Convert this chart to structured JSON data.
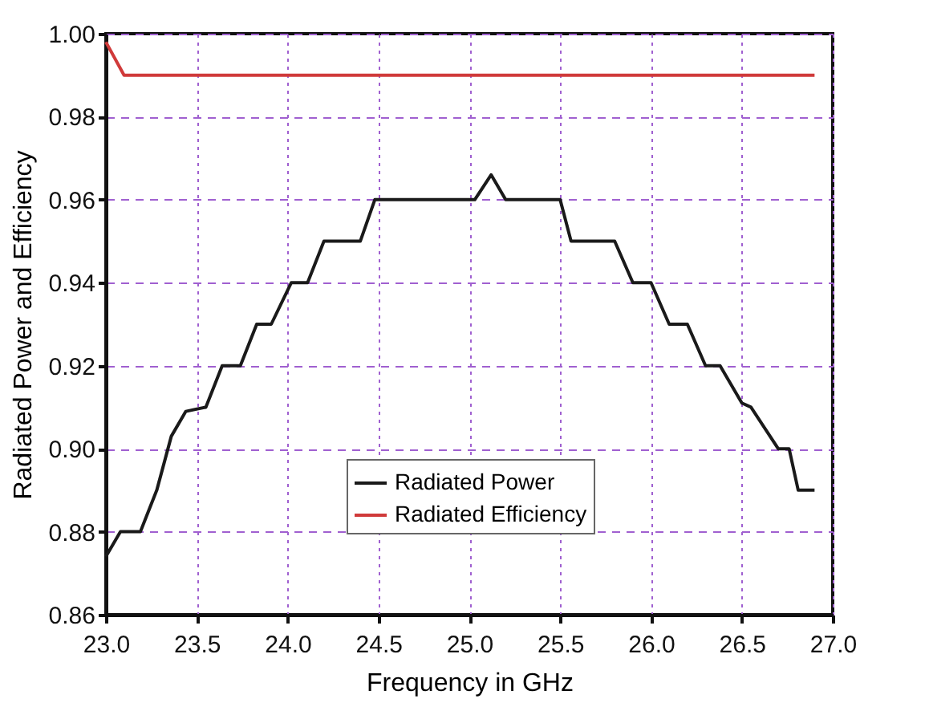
{
  "chart_data": {
    "type": "line",
    "xlabel": "Frequency in GHz",
    "ylabel": "Radiated Power and Efficiency",
    "xlim": [
      23.0,
      27.0
    ],
    "xticks": [
      {
        "value": 23.0,
        "label": "23.0"
      },
      {
        "value": 23.5,
        "label": "23.5"
      },
      {
        "value": 24.0,
        "label": "24.0"
      },
      {
        "value": 24.5,
        "label": "24.5"
      },
      {
        "value": 25.0,
        "label": "25.0"
      },
      {
        "value": 25.5,
        "label": "25.5"
      },
      {
        "value": 26.0,
        "label": "26.0"
      },
      {
        "value": 26.5,
        "label": "26.5"
      },
      {
        "value": 27.0,
        "label": "27.0"
      }
    ],
    "ylim": [
      0.86,
      1.0
    ],
    "yticks": [
      {
        "value": 0.86,
        "label": "0.86"
      },
      {
        "value": 0.88,
        "label": "0.88"
      },
      {
        "value": 0.9,
        "label": "0.90"
      },
      {
        "value": 0.92,
        "label": "0.92"
      },
      {
        "value": 0.94,
        "label": "0.94"
      },
      {
        "value": 0.96,
        "label": "0.96"
      },
      {
        "value": 0.98,
        "label": "0.98"
      },
      {
        "value": 1.0,
        "label": "1.00"
      }
    ],
    "grid": true,
    "legend": "bottom",
    "marker": "none",
    "line_style": "solid",
    "series": [
      {
        "name": "Radiated Power",
        "color": "#1a1a1a",
        "x": [
          23.0,
          23.08,
          23.19,
          23.28,
          23.36,
          23.44,
          23.55,
          23.64,
          23.74,
          23.83,
          23.91,
          24.02,
          24.11,
          24.2,
          24.4,
          24.48,
          25.03,
          25.12,
          25.2,
          25.5,
          25.56,
          25.8,
          25.9,
          26.0,
          26.1,
          26.2,
          26.3,
          26.38,
          26.5,
          26.55,
          26.7,
          26.76,
          26.81,
          26.9
        ],
        "values": [
          0.874,
          0.88,
          0.88,
          0.89,
          0.903,
          0.909,
          0.91,
          0.92,
          0.92,
          0.93,
          0.93,
          0.94,
          0.94,
          0.95,
          0.95,
          0.96,
          0.96,
          0.966,
          0.96,
          0.96,
          0.95,
          0.95,
          0.94,
          0.94,
          0.93,
          0.93,
          0.92,
          0.92,
          0.911,
          0.91,
          0.9,
          0.9,
          0.89,
          0.89
        ]
      },
      {
        "name": "Radiated Efficiency",
        "color": "#d03a3a",
        "x": [
          23.0,
          23.1,
          26.9
        ],
        "values": [
          0.998,
          0.99,
          0.99
        ]
      }
    ]
  }
}
